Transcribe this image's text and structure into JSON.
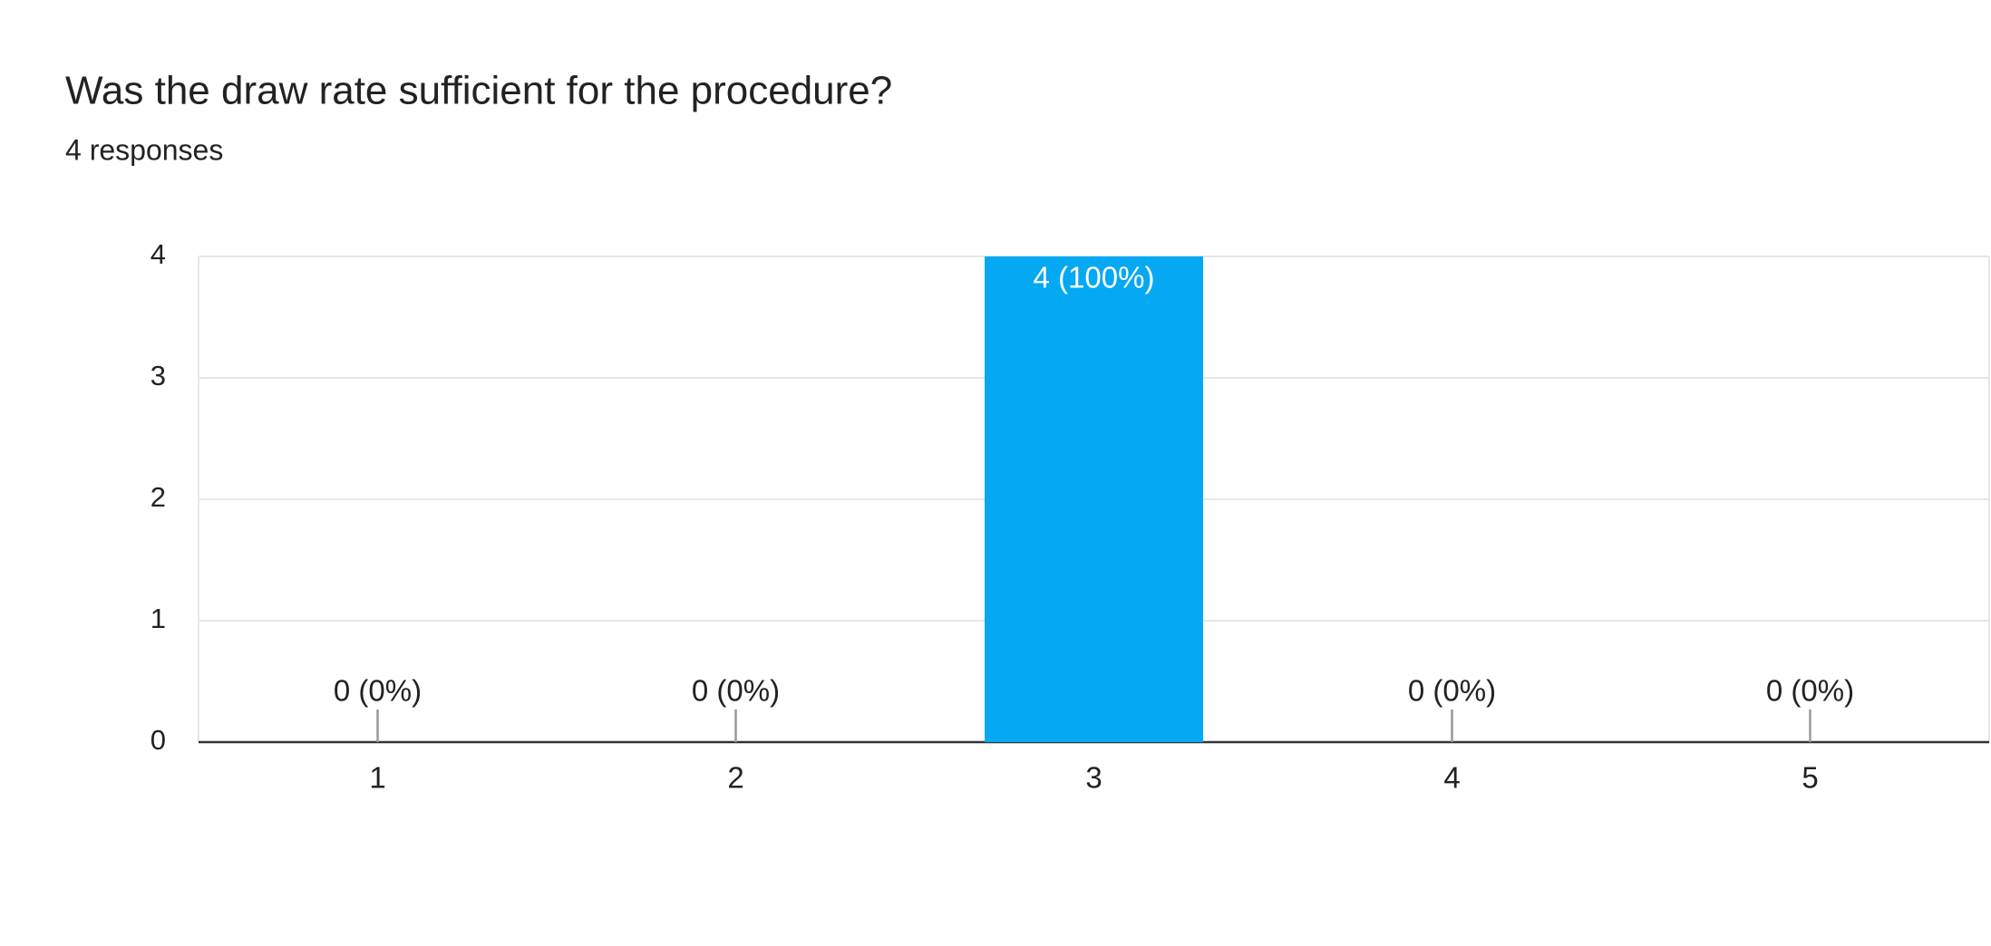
{
  "chart_data": {
    "type": "bar",
    "title": "Was the draw rate sufficient for the procedure?",
    "subtitle": "4 responses",
    "categories": [
      "1",
      "2",
      "3",
      "4",
      "5"
    ],
    "values": [
      0,
      0,
      4,
      0,
      0
    ],
    "value_labels": [
      "0 (0%)",
      "0 (0%)",
      "4 (100%)",
      "0 (0%)",
      "0 (0%)"
    ],
    "color": "#05a8f3",
    "ylim": [
      0,
      4
    ],
    "yticks": [
      0,
      1,
      2,
      3,
      4
    ],
    "grid": true
  }
}
